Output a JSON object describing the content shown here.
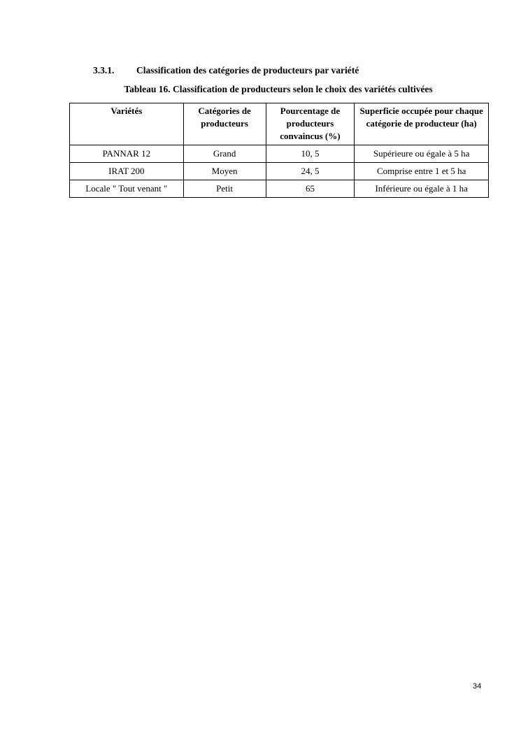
{
  "section": {
    "number": "3.3.1.",
    "title": "Classification des catégories de producteurs par variété"
  },
  "table_caption": "Tableau 16. Classification de producteurs selon le choix des variétés cultivées",
  "table": {
    "headers": [
      "Variétés",
      "Catégories de producteurs",
      "Pourcentage de producteurs convaincus (%)",
      "Superficie occupée pour chaque catégorie de producteur (ha)"
    ],
    "rows": [
      [
        "PANNAR 12",
        "Grand",
        "10, 5",
        "Supérieure ou égale à 5 ha"
      ],
      [
        "IRAT 200",
        "Moyen",
        "24, 5",
        "Comprise entre 1 et 5 ha"
      ],
      [
        "Locale \" Tout venant \"",
        "Petit",
        "65",
        "Inférieure ou égale à 1 ha"
      ]
    ]
  },
  "page_number": "34"
}
